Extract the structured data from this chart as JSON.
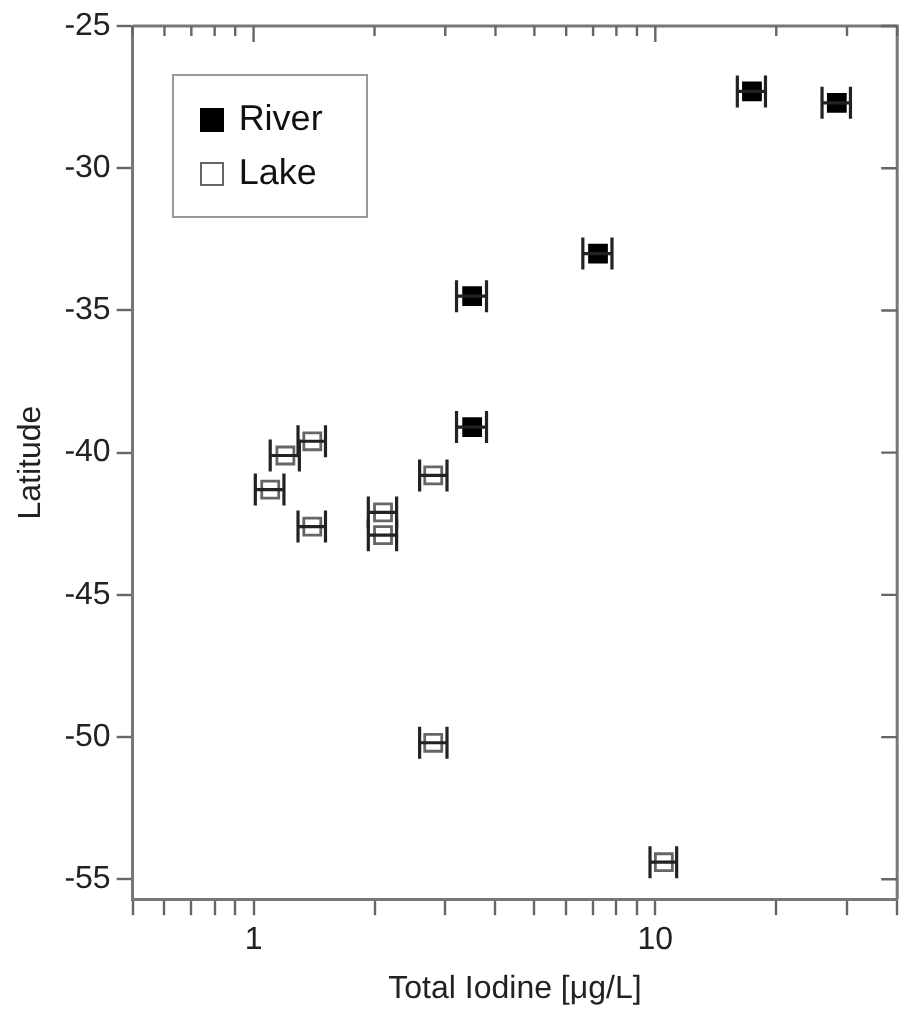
{
  "chart_data": {
    "type": "scatter",
    "xlabel": "Total Iodine [μg/L]",
    "ylabel": "Latitude",
    "log": "x",
    "xlim": [
      0.5,
      40
    ],
    "ylim": [
      -55.7,
      -25
    ],
    "xticks": [
      {
        "value": 0.5,
        "label": null
      },
      {
        "value": 0.6,
        "label": null
      },
      {
        "value": 0.7,
        "label": null
      },
      {
        "value": 0.8,
        "label": null
      },
      {
        "value": 0.9,
        "label": null
      },
      1,
      {
        "value": 2,
        "label": null
      },
      {
        "value": 3,
        "label": null
      },
      {
        "value": 4,
        "label": null
      },
      {
        "value": 5,
        "label": null
      },
      {
        "value": 6,
        "label": null
      },
      {
        "value": 7,
        "label": null
      },
      {
        "value": 8,
        "label": null
      },
      {
        "value": 9,
        "label": null
      },
      10,
      {
        "value": 20,
        "label": null
      },
      {
        "value": 30,
        "label": null
      },
      {
        "value": 40,
        "label": null
      }
    ],
    "yticks": [
      -55,
      -50,
      -45,
      -40,
      -35,
      -30,
      -25
    ],
    "grid": false,
    "legend": "top left",
    "series": [
      {
        "name": "River",
        "color": "#000000",
        "marker": "square",
        "x": [
          17.4,
          28.3,
          7.2,
          3.5,
          3.5
        ],
        "values": [
          -27.3,
          -27.7,
          -33.0,
          -34.5,
          -39.1
        ],
        "xerrors": [
          [
            16.0,
            18.8
          ],
          [
            26.0,
            30.6
          ],
          [
            6.6,
            7.8
          ],
          [
            3.2,
            3.8
          ],
          [
            3.2,
            3.8
          ]
        ]
      },
      {
        "name": "Lake",
        "color": "#666666",
        "marker": "square_open",
        "x": [
          1.4,
          1.2,
          1.1,
          1.4,
          2.1,
          2.1,
          2.8,
          2.8,
          10.5
        ],
        "values": [
          -39.6,
          -40.1,
          -41.3,
          -42.6,
          -42.1,
          -42.9,
          -40.8,
          -50.2,
          -54.4
        ],
        "xerrors": [
          [
            1.29,
            1.51
          ],
          [
            1.1,
            1.3
          ],
          [
            1.01,
            1.19
          ],
          [
            1.29,
            1.51
          ],
          [
            1.93,
            2.27
          ],
          [
            1.93,
            2.27
          ],
          [
            2.59,
            3.03
          ],
          [
            2.59,
            3.03
          ],
          [
            9.7,
            11.3
          ]
        ]
      }
    ]
  }
}
